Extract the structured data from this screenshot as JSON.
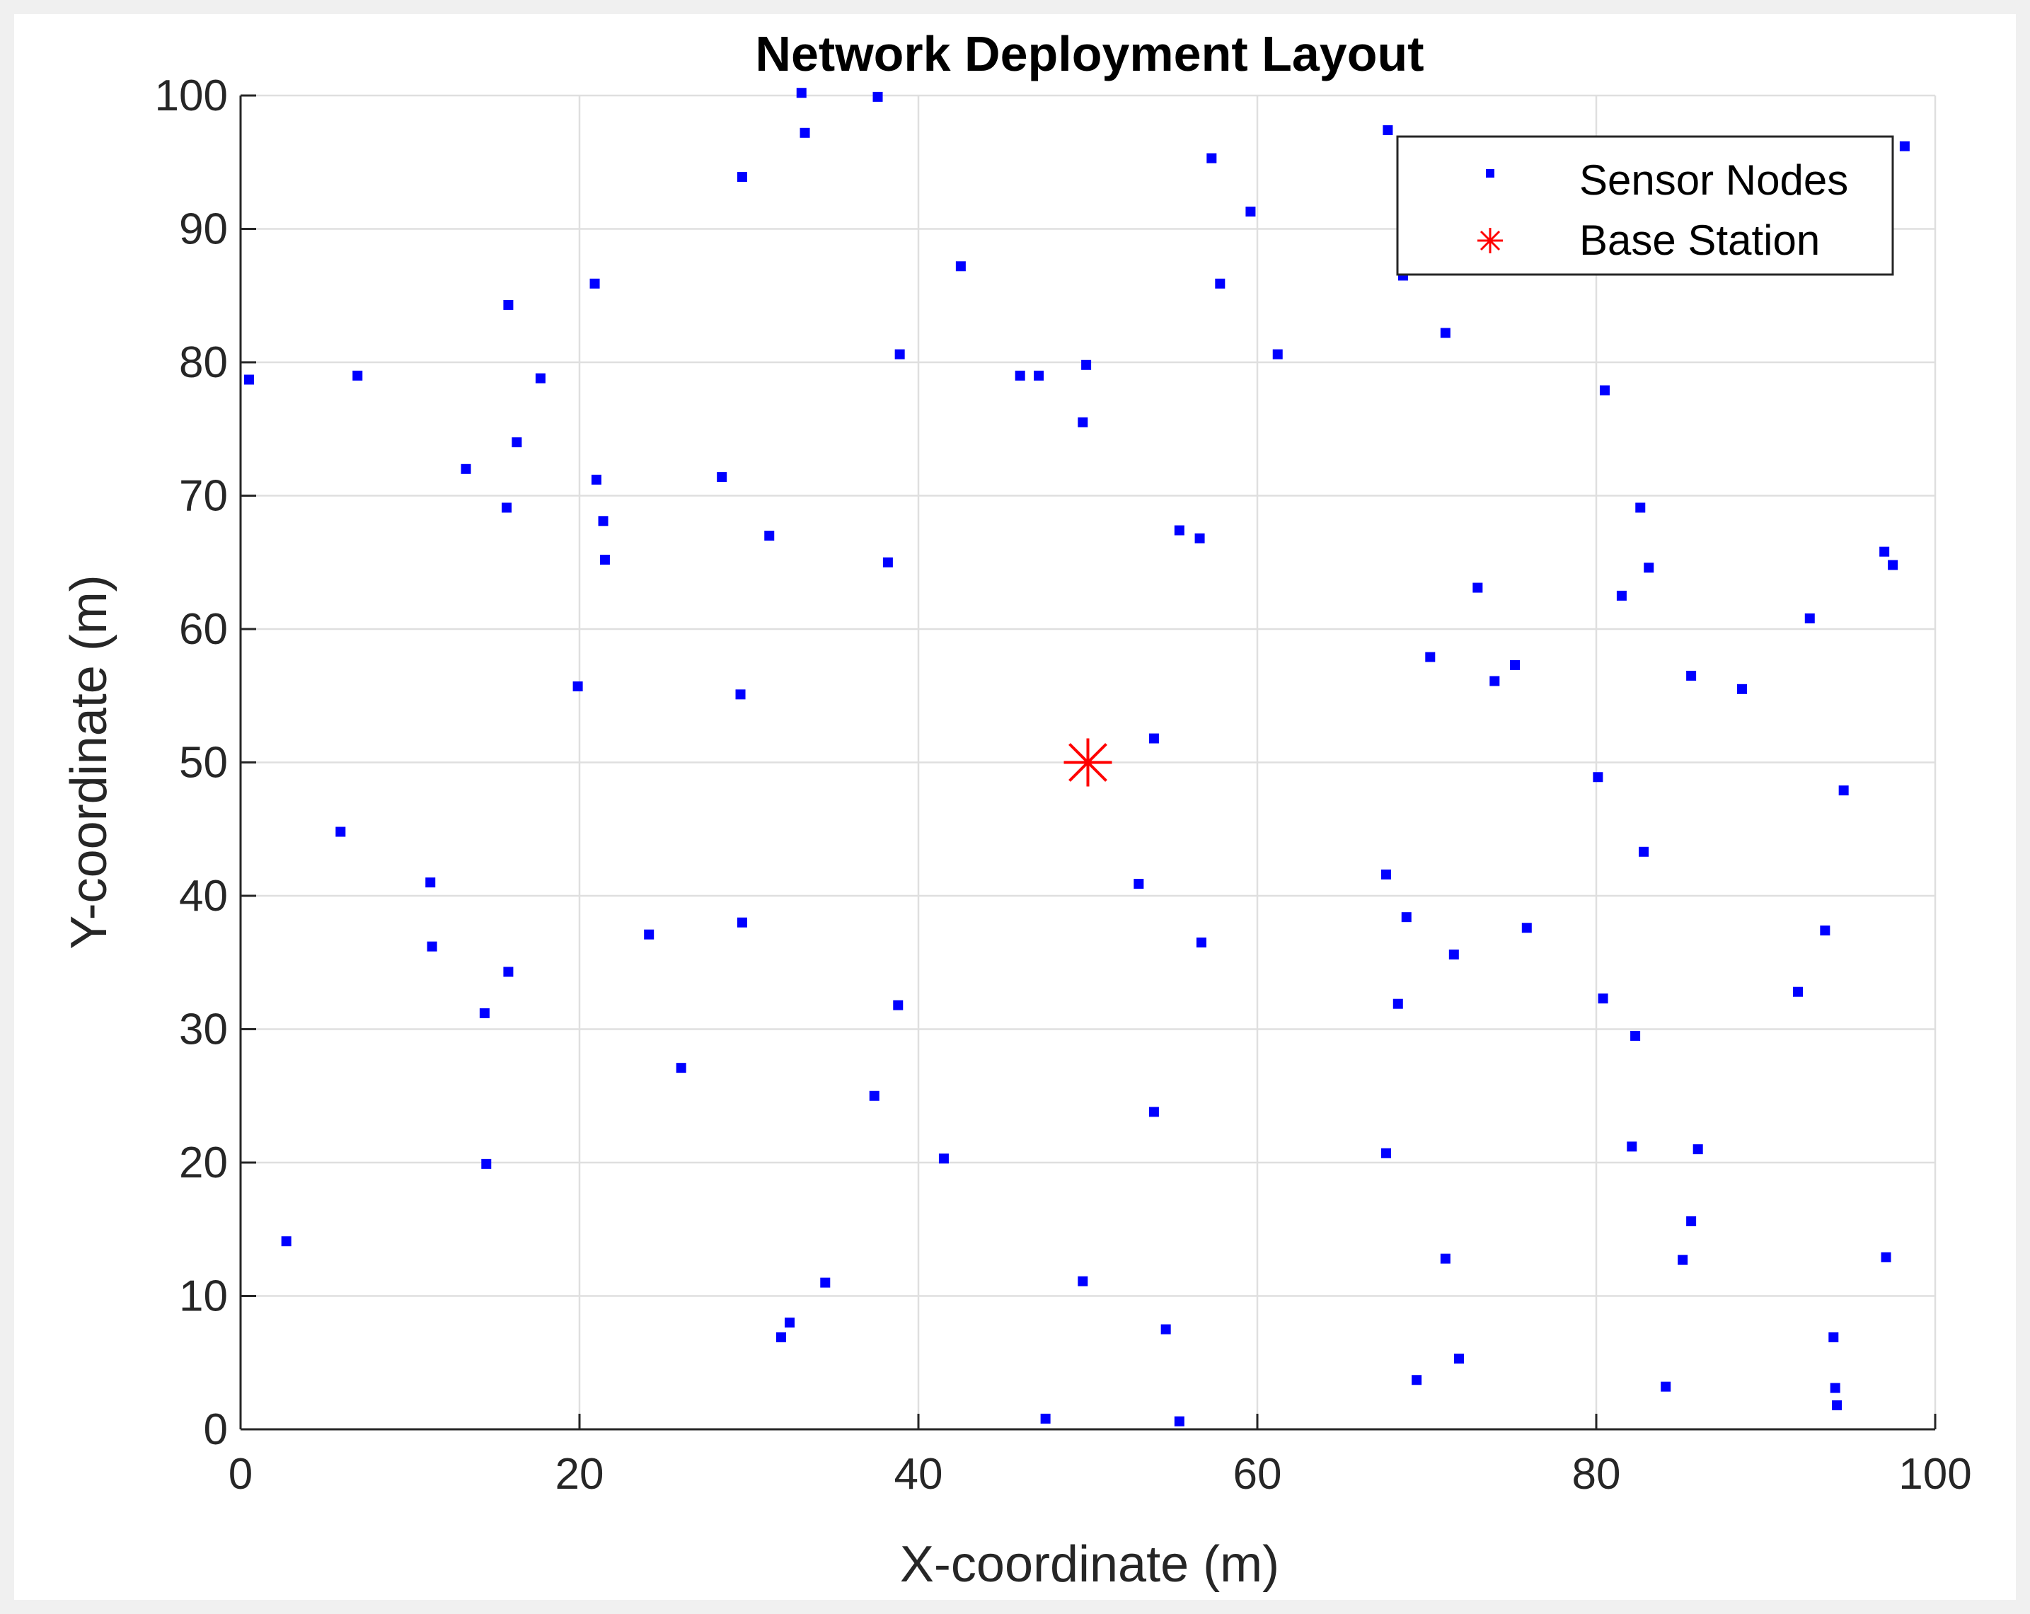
{
  "chart_data": {
    "type": "scatter",
    "title": "Network Deployment Layout",
    "xlabel": "X-coordinate (m)",
    "ylabel": "Y-coordinate (m)",
    "xlim": [
      0,
      100
    ],
    "ylim": [
      0,
      100
    ],
    "xticks": [
      0,
      20,
      40,
      60,
      80,
      100
    ],
    "yticks": [
      0,
      10,
      20,
      30,
      40,
      50,
      60,
      70,
      80,
      90,
      100
    ],
    "grid": true,
    "legend_position": "top-right",
    "series": [
      {
        "name": "Sensor Nodes",
        "marker": "square",
        "color": "#0000ff",
        "points": [
          [
            0.5,
            78.7
          ],
          [
            6.9,
            79.0
          ],
          [
            15.8,
            84.3
          ],
          [
            17.7,
            78.8
          ],
          [
            20.9,
            85.9
          ],
          [
            13.3,
            72.0
          ],
          [
            16.3,
            74.0
          ],
          [
            15.7,
            69.1
          ],
          [
            21.0,
            71.2
          ],
          [
            21.4,
            68.1
          ],
          [
            21.5,
            65.2
          ],
          [
            2.7,
            14.1
          ],
          [
            5.9,
            44.8
          ],
          [
            11.2,
            41.0
          ],
          [
            11.3,
            36.2
          ],
          [
            15.8,
            34.3
          ],
          [
            14.4,
            31.2
          ],
          [
            14.5,
            19.9
          ],
          [
            19.9,
            55.7
          ],
          [
            24.1,
            37.1
          ],
          [
            26.0,
            27.1
          ],
          [
            29.6,
            93.9
          ],
          [
            33.1,
            100.2
          ],
          [
            33.3,
            97.2
          ],
          [
            37.6,
            99.9
          ],
          [
            28.4,
            71.4
          ],
          [
            31.2,
            67.0
          ],
          [
            29.5,
            55.1
          ],
          [
            29.6,
            38.0
          ],
          [
            38.2,
            65.0
          ],
          [
            38.8,
            31.8
          ],
          [
            38.9,
            80.6
          ],
          [
            37.4,
            25.0
          ],
          [
            34.5,
            11.0
          ],
          [
            32.4,
            8.0
          ],
          [
            31.9,
            6.9
          ],
          [
            41.5,
            20.3
          ],
          [
            42.5,
            87.2
          ],
          [
            46.0,
            79.0
          ],
          [
            47.1,
            79.0
          ],
          [
            49.9,
            79.8
          ],
          [
            49.7,
            75.5
          ],
          [
            47.5,
            0.8
          ],
          [
            49.7,
            11.1
          ],
          [
            53.9,
            51.8
          ],
          [
            53.0,
            40.9
          ],
          [
            53.9,
            23.8
          ],
          [
            54.6,
            7.5
          ],
          [
            55.4,
            0.6
          ],
          [
            55.4,
            67.4
          ],
          [
            56.6,
            66.8
          ],
          [
            56.7,
            36.5
          ],
          [
            57.3,
            95.3
          ],
          [
            57.8,
            85.9
          ],
          [
            59.6,
            91.3
          ],
          [
            61.2,
            80.6
          ],
          [
            67.7,
            97.4
          ],
          [
            67.6,
            41.6
          ],
          [
            67.6,
            20.7
          ],
          [
            68.3,
            31.9
          ],
          [
            68.8,
            38.4
          ],
          [
            69.4,
            3.7
          ],
          [
            71.1,
            82.2
          ],
          [
            71.1,
            12.8
          ],
          [
            70.2,
            57.9
          ],
          [
            71.6,
            35.6
          ],
          [
            71.9,
            5.3
          ],
          [
            73.0,
            63.1
          ],
          [
            74.0,
            56.1
          ],
          [
            75.2,
            57.3
          ],
          [
            75.9,
            37.6
          ],
          [
            80.5,
            77.9
          ],
          [
            80.1,
            48.9
          ],
          [
            80.4,
            32.3
          ],
          [
            81.5,
            62.5
          ],
          [
            82.6,
            69.1
          ],
          [
            83.1,
            64.6
          ],
          [
            82.8,
            43.3
          ],
          [
            82.3,
            29.5
          ],
          [
            82.1,
            21.2
          ],
          [
            84.1,
            3.2
          ],
          [
            85.6,
            56.5
          ],
          [
            86.0,
            21.0
          ],
          [
            85.6,
            15.6
          ],
          [
            85.1,
            12.7
          ],
          [
            88.6,
            55.5
          ],
          [
            91.9,
            32.8
          ],
          [
            92.6,
            60.8
          ],
          [
            93.5,
            37.4
          ],
          [
            94.0,
            6.9
          ],
          [
            94.1,
            3.1
          ],
          [
            94.2,
            1.8
          ],
          [
            94.6,
            47.9
          ],
          [
            97.0,
            65.8
          ],
          [
            97.5,
            64.8
          ],
          [
            97.1,
            12.9
          ],
          [
            98.2,
            96.2
          ],
          [
            68.6,
            86.5
          ]
        ]
      },
      {
        "name": "Base Station",
        "marker": "asterisk",
        "color": "#ff0000",
        "points": [
          [
            50,
            50
          ]
        ]
      }
    ]
  }
}
